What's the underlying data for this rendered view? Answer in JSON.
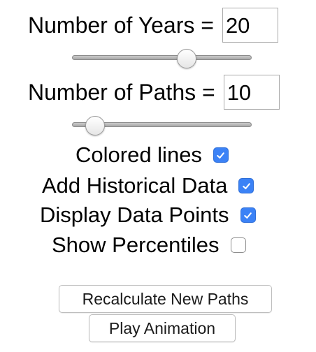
{
  "years": {
    "label": "Number of Years =",
    "value": "20",
    "slider_fraction": 0.64
  },
  "paths": {
    "label": "Number of Paths =",
    "value": "10",
    "slider_fraction": 0.13
  },
  "options": [
    {
      "label": "Colored lines",
      "checked": true
    },
    {
      "label": "Add Historical Data",
      "checked": true
    },
    {
      "label": "Display Data Points",
      "checked": true
    },
    {
      "label": "Show Percentiles",
      "checked": false
    }
  ],
  "buttons": {
    "recalculate_label": "Recalculate New Paths",
    "play_label": "Play Animation"
  },
  "colors": {
    "checkbox_checked": "#3b82f6"
  }
}
